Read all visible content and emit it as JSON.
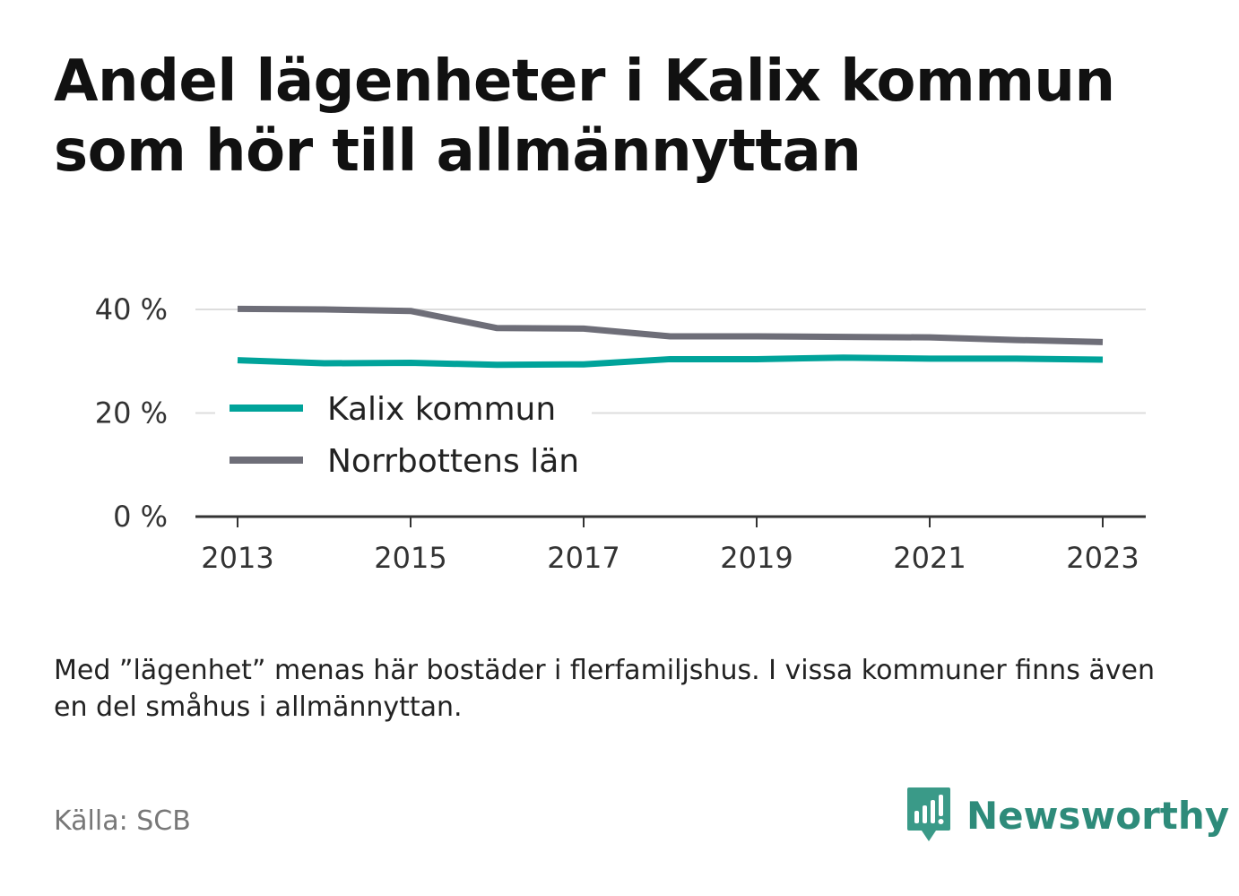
{
  "title": "Andel lägenheter i Kalix kommun som hör till allmännyttan",
  "note": "Med ”lägenhet” menas här bostäder i flerfamiljshus. I vissa kommuner finns även en del småhus i allmännyttan.",
  "source": "Källa: SCB",
  "brand": {
    "name": "Newsworthy",
    "color": "#2e8b7a"
  },
  "chart_data": {
    "type": "line",
    "x": [
      2013,
      2014,
      2015,
      2016,
      2017,
      2018,
      2019,
      2020,
      2021,
      2022,
      2023
    ],
    "series": [
      {
        "name": "Kalix kommun",
        "color": "#00a39a",
        "values": [
          30.2,
          29.6,
          29.7,
          29.3,
          29.4,
          30.4,
          30.4,
          30.7,
          30.5,
          30.5,
          30.3
        ]
      },
      {
        "name": "Norrbottens län",
        "color": "#6e6e78",
        "values": [
          40.1,
          40.0,
          39.7,
          36.4,
          36.3,
          34.8,
          34.8,
          34.7,
          34.6,
          34.1,
          33.7
        ]
      }
    ],
    "x_ticks": [
      "2013",
      "2015",
      "2017",
      "2019",
      "2021",
      "2023"
    ],
    "y_ticks": [
      "0 %",
      "20 %",
      "40 %"
    ],
    "y_tick_values": [
      0,
      20,
      40
    ],
    "ylim": [
      0,
      40
    ],
    "xlabel": "",
    "ylabel": "",
    "grid": true,
    "legend": "center-left"
  }
}
